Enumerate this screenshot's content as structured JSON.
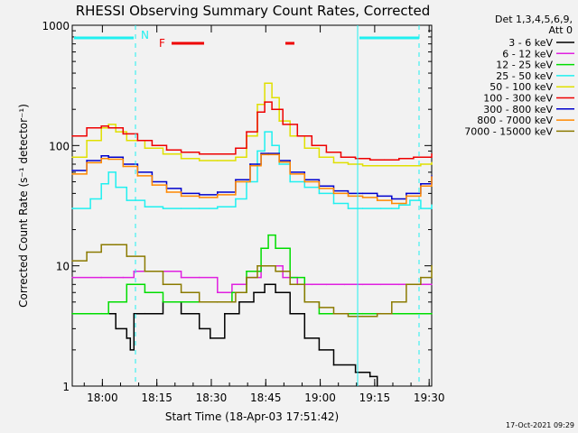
{
  "chart_data": {
    "type": "line",
    "title": "RHESSI Observing Summary Count Rates, Corrected",
    "xlabel": "Start Time (18-Apr-03 17:51:42)",
    "ylabel": "Corrected Count Rate (s⁻¹ detector⁻¹)",
    "y_scale": "log",
    "ylim": [
      1,
      1000
    ],
    "xlim_minutes": [
      0,
      99
    ],
    "x_ticks": [
      {
        "label": "18:00",
        "t": 8.3
      },
      {
        "label": "18:15",
        "t": 23.3
      },
      {
        "label": "18:30",
        "t": 38.3
      },
      {
        "label": "18:45",
        "t": 53.3
      },
      {
        "label": "19:00",
        "t": 68.3
      },
      {
        "label": "19:15",
        "t": 83.3
      },
      {
        "label": "19:30",
        "t": 98.3
      }
    ],
    "y_ticks": [
      {
        "label": "1",
        "v": 1
      },
      {
        "label": "10",
        "v": 10
      },
      {
        "label": "100",
        "v": 100
      },
      {
        "label": "1000",
        "v": 1000
      }
    ],
    "legend_header": [
      "Det 1,3,4,5,6,9,",
      "Att 0"
    ],
    "footer_date": "17-Oct-2021 09:29",
    "annotations": {
      "night_label": "N",
      "flare_label": "F"
    },
    "series": [
      {
        "name": "3 - 6 keV",
        "color": "#000000",
        "points": [
          [
            0,
            4
          ],
          [
            8,
            4
          ],
          [
            12,
            3
          ],
          [
            15,
            2.5
          ],
          [
            16,
            2
          ],
          [
            17,
            4
          ],
          [
            20,
            4
          ],
          [
            25,
            5
          ],
          [
            30,
            4
          ],
          [
            35,
            3
          ],
          [
            38,
            2.5
          ],
          [
            42,
            4
          ],
          [
            46,
            5
          ],
          [
            50,
            6
          ],
          [
            53,
            7
          ],
          [
            56,
            6
          ],
          [
            60,
            4
          ],
          [
            64,
            2.5
          ],
          [
            68,
            2
          ],
          [
            72,
            1.5
          ],
          [
            78,
            1.3
          ],
          [
            82,
            1.2
          ],
          [
            84,
            1
          ]
        ]
      },
      {
        "name": "6 - 12 keV",
        "color": "#e020e0",
        "points": [
          [
            0,
            8
          ],
          [
            8,
            8
          ],
          [
            14,
            8
          ],
          [
            17,
            9
          ],
          [
            20,
            9
          ],
          [
            25,
            9
          ],
          [
            30,
            8
          ],
          [
            35,
            8
          ],
          [
            40,
            6
          ],
          [
            44,
            7
          ],
          [
            48,
            8
          ],
          [
            52,
            10
          ],
          [
            54,
            10
          ],
          [
            58,
            8
          ],
          [
            62,
            7
          ],
          [
            66,
            7
          ],
          [
            70,
            7
          ],
          [
            75,
            7
          ],
          [
            80,
            7
          ],
          [
            85,
            7
          ],
          [
            90,
            7
          ],
          [
            95,
            7
          ],
          [
            99,
            7
          ]
        ]
      },
      {
        "name": "12 - 25 keV",
        "color": "#00dd00",
        "points": [
          [
            0,
            4
          ],
          [
            5,
            4
          ],
          [
            10,
            5
          ],
          [
            15,
            7
          ],
          [
            20,
            6
          ],
          [
            25,
            5
          ],
          [
            30,
            5
          ],
          [
            35,
            5
          ],
          [
            40,
            5
          ],
          [
            44,
            6
          ],
          [
            48,
            9
          ],
          [
            52,
            14
          ],
          [
            54,
            18
          ],
          [
            56,
            14
          ],
          [
            60,
            8
          ],
          [
            64,
            5
          ],
          [
            68,
            4
          ],
          [
            72,
            4
          ],
          [
            76,
            4
          ],
          [
            80,
            4
          ],
          [
            85,
            4
          ],
          [
            90,
            4
          ],
          [
            95,
            4
          ],
          [
            99,
            4
          ]
        ]
      },
      {
        "name": "25 - 50 keV",
        "color": "#20f0f0",
        "points": [
          [
            0,
            30
          ],
          [
            5,
            36
          ],
          [
            8,
            48
          ],
          [
            10,
            60
          ],
          [
            12,
            45
          ],
          [
            15,
            35
          ],
          [
            20,
            31
          ],
          [
            25,
            30
          ],
          [
            30,
            30
          ],
          [
            35,
            30
          ],
          [
            40,
            31
          ],
          [
            45,
            36
          ],
          [
            48,
            50
          ],
          [
            51,
            90
          ],
          [
            53,
            130
          ],
          [
            55,
            100
          ],
          [
            57,
            70
          ],
          [
            60,
            50
          ],
          [
            64,
            45
          ],
          [
            68,
            40
          ],
          [
            72,
            33
          ],
          [
            76,
            30
          ],
          [
            80,
            30
          ],
          [
            85,
            30
          ],
          [
            88,
            30
          ],
          [
            90,
            32
          ],
          [
            93,
            35
          ],
          [
            96,
            30
          ],
          [
            99,
            32
          ]
        ]
      },
      {
        "name": "50 - 100 keV",
        "color": "#e0e000",
        "points": [
          [
            0,
            80
          ],
          [
            4,
            110
          ],
          [
            8,
            140
          ],
          [
            10,
            150
          ],
          [
            12,
            130
          ],
          [
            15,
            110
          ],
          [
            20,
            95
          ],
          [
            25,
            85
          ],
          [
            30,
            78
          ],
          [
            35,
            75
          ],
          [
            40,
            75
          ],
          [
            45,
            80
          ],
          [
            48,
            120
          ],
          [
            51,
            220
          ],
          [
            53,
            330
          ],
          [
            55,
            250
          ],
          [
            57,
            160
          ],
          [
            60,
            120
          ],
          [
            64,
            95
          ],
          [
            68,
            80
          ],
          [
            72,
            72
          ],
          [
            76,
            70
          ],
          [
            80,
            68
          ],
          [
            84,
            68
          ],
          [
            88,
            68
          ],
          [
            92,
            68
          ],
          [
            96,
            70
          ],
          [
            99,
            72
          ]
        ]
      },
      {
        "name": "100 - 300 keV",
        "color": "#ee0000",
        "points": [
          [
            0,
            120
          ],
          [
            4,
            140
          ],
          [
            8,
            145
          ],
          [
            10,
            140
          ],
          [
            14,
            125
          ],
          [
            18,
            110
          ],
          [
            22,
            100
          ],
          [
            26,
            92
          ],
          [
            30,
            88
          ],
          [
            35,
            85
          ],
          [
            40,
            85
          ],
          [
            45,
            95
          ],
          [
            48,
            130
          ],
          [
            51,
            190
          ],
          [
            53,
            230
          ],
          [
            55,
            200
          ],
          [
            58,
            150
          ],
          [
            62,
            120
          ],
          [
            66,
            100
          ],
          [
            70,
            88
          ],
          [
            74,
            80
          ],
          [
            78,
            78
          ],
          [
            82,
            76
          ],
          [
            86,
            76
          ],
          [
            90,
            78
          ],
          [
            94,
            80
          ],
          [
            99,
            85
          ]
        ]
      },
      {
        "name": "300 - 800 keV",
        "color": "#0000cc",
        "points": [
          [
            0,
            62
          ],
          [
            4,
            75
          ],
          [
            8,
            82
          ],
          [
            10,
            80
          ],
          [
            14,
            70
          ],
          [
            18,
            60
          ],
          [
            22,
            50
          ],
          [
            26,
            44
          ],
          [
            30,
            40
          ],
          [
            35,
            39
          ],
          [
            40,
            41
          ],
          [
            45,
            52
          ],
          [
            49,
            70
          ],
          [
            52,
            86
          ],
          [
            54,
            86
          ],
          [
            57,
            75
          ],
          [
            60,
            60
          ],
          [
            64,
            52
          ],
          [
            68,
            46
          ],
          [
            72,
            42
          ],
          [
            76,
            40
          ],
          [
            80,
            40
          ],
          [
            84,
            38
          ],
          [
            88,
            36
          ],
          [
            92,
            40
          ],
          [
            96,
            48
          ],
          [
            99,
            56
          ]
        ]
      },
      {
        "name": "800 - 7000 keV",
        "color": "#ff8800",
        "points": [
          [
            0,
            58
          ],
          [
            4,
            72
          ],
          [
            8,
            78
          ],
          [
            10,
            77
          ],
          [
            14,
            67
          ],
          [
            18,
            56
          ],
          [
            22,
            47
          ],
          [
            26,
            41
          ],
          [
            30,
            38
          ],
          [
            35,
            37
          ],
          [
            40,
            39
          ],
          [
            45,
            50
          ],
          [
            49,
            68
          ],
          [
            52,
            84
          ],
          [
            54,
            84
          ],
          [
            57,
            73
          ],
          [
            60,
            58
          ],
          [
            64,
            50
          ],
          [
            68,
            44
          ],
          [
            72,
            40
          ],
          [
            76,
            38
          ],
          [
            80,
            37
          ],
          [
            84,
            35
          ],
          [
            88,
            33
          ],
          [
            92,
            38
          ],
          [
            96,
            46
          ],
          [
            99,
            55
          ]
        ]
      },
      {
        "name": "7000 - 15000 keV",
        "color": "#8b7a00",
        "points": [
          [
            0,
            11
          ],
          [
            4,
            13
          ],
          [
            8,
            15
          ],
          [
            12,
            15
          ],
          [
            15,
            12
          ],
          [
            20,
            9
          ],
          [
            25,
            7
          ],
          [
            30,
            6
          ],
          [
            35,
            5
          ],
          [
            40,
            5
          ],
          [
            45,
            6
          ],
          [
            48,
            8
          ],
          [
            51,
            10
          ],
          [
            53,
            10
          ],
          [
            56,
            9
          ],
          [
            60,
            7
          ],
          [
            64,
            5
          ],
          [
            68,
            4.5
          ],
          [
            72,
            4
          ],
          [
            76,
            3.8
          ],
          [
            80,
            3.8
          ],
          [
            84,
            4
          ],
          [
            88,
            5
          ],
          [
            92,
            7
          ],
          [
            96,
            8
          ],
          [
            99,
            10
          ]
        ]
      }
    ]
  }
}
